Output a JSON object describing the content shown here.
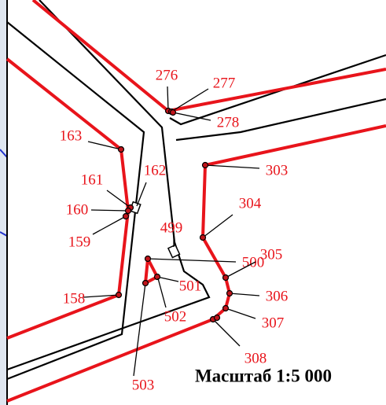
{
  "scale": "Масштаб 1:5 000",
  "points": [
    {
      "label": "276"
    },
    {
      "label": "277"
    },
    {
      "label": "278"
    },
    {
      "label": "163"
    },
    {
      "label": "162"
    },
    {
      "label": "161"
    },
    {
      "label": "160"
    },
    {
      "label": "159"
    },
    {
      "label": "158"
    },
    {
      "label": "303"
    },
    {
      "label": "304"
    },
    {
      "label": "499"
    },
    {
      "label": "500"
    },
    {
      "label": "501"
    },
    {
      "label": "502"
    },
    {
      "label": "503"
    },
    {
      "label": "305"
    },
    {
      "label": "306"
    },
    {
      "label": "307"
    },
    {
      "label": "308"
    }
  ]
}
